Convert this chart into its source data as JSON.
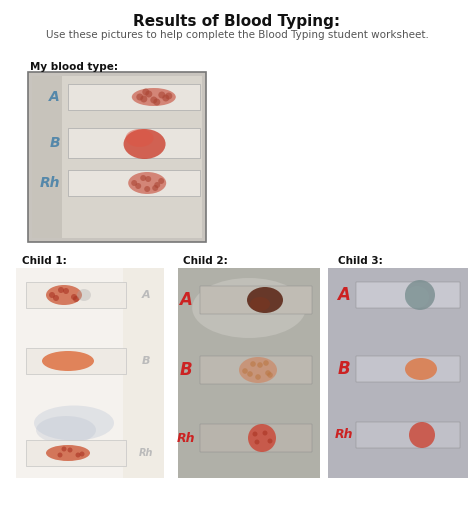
{
  "title": "Results of Blood Typing:",
  "subtitle": "Use these pictures to help complete the Blood Typing student worksheet.",
  "my_blood_label": "My blood type:",
  "child_labels": [
    "Child 1:",
    "Child 2:",
    "Child 3:"
  ],
  "bg_color": "#ffffff",
  "title_fontsize": 11,
  "subtitle_fontsize": 7.5,
  "label_fontsize": 7.5,
  "child_label_fontsize": 7.5,
  "letter_A_color": "#5588aa",
  "letter_B_color": "#5588aa",
  "letter_Rh_color": "#5588aa",
  "child2_letter_color": "#cc2222",
  "child3_letter_color": "#cc2222"
}
